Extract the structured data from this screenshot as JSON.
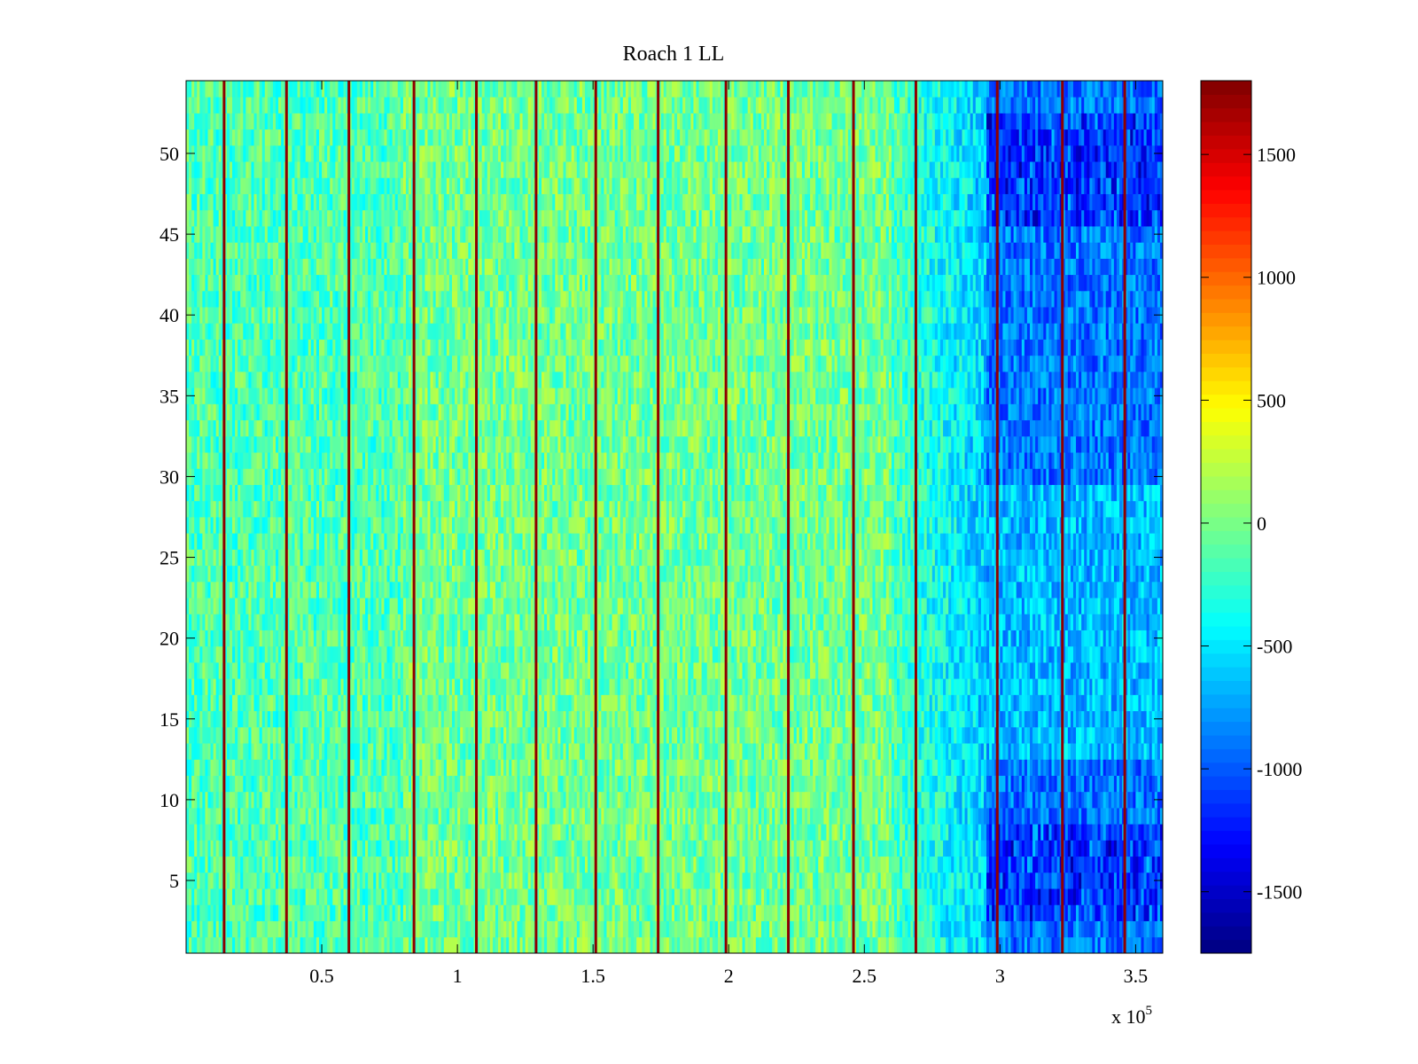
{
  "chart_data": {
    "type": "heatmap",
    "title": "Roach 1 LL",
    "xlabel": "",
    "ylabel": "",
    "x_multiplier_label": "x 10",
    "x_multiplier_exponent": "5",
    "xlim": [
      0,
      3.6
    ],
    "ylim": [
      0.5,
      54.5
    ],
    "x_ticks": [
      0.5,
      1,
      1.5,
      2,
      2.5,
      3,
      3.5
    ],
    "x_tick_labels": [
      "0.5",
      "1",
      "1.5",
      "2",
      "2.5",
      "3",
      "3.5"
    ],
    "y_ticks": [
      5,
      10,
      15,
      20,
      25,
      30,
      35,
      40,
      45,
      50
    ],
    "y_tick_labels": [
      "5",
      "10",
      "15",
      "20",
      "25",
      "30",
      "35",
      "40",
      "45",
      "50"
    ],
    "rows": 54,
    "colorbar": {
      "colormap": "jet",
      "clim": [
        -1750,
        1800
      ],
      "ticks": [
        1500,
        1000,
        500,
        0,
        -500,
        -1000,
        -1500
      ],
      "tick_labels": [
        "1500",
        "1000",
        "500",
        "0",
        "-500",
        "-1000",
        "-1500"
      ]
    },
    "field_description": {
      "baseline_value": -150,
      "noise_amplitude": 300,
      "warm_band": {
        "x_start": 0.8,
        "x_end": 2.6,
        "value_offset": 120
      },
      "cold_region": {
        "x_start": 2.95,
        "x_end": 3.6,
        "value": -900,
        "deep_rows_low": [
          3,
          8
        ],
        "deep_rows_high": [
          46,
          52
        ]
      },
      "spike_columns_x": [
        0.14,
        0.37,
        0.6,
        0.84,
        1.07,
        1.29,
        1.51,
        1.74,
        1.99,
        2.22,
        2.46,
        2.69,
        2.99,
        3.23,
        3.46
      ],
      "spike_value": 1750
    }
  }
}
